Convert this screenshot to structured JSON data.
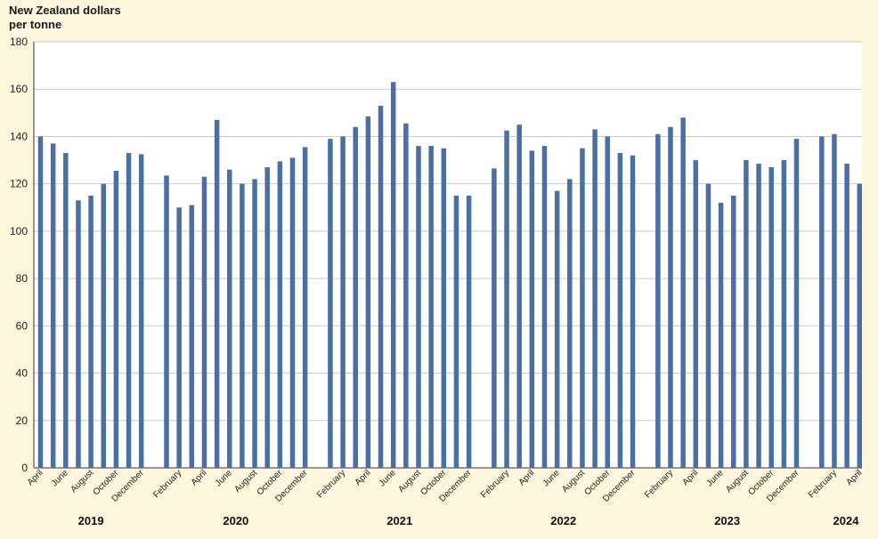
{
  "chart_data": {
    "type": "bar",
    "title": "",
    "unit_label_line1": "New Zealand dollars",
    "unit_label_line2": "per tonne",
    "xlabel": "",
    "ylabel": "New Zealand dollars per tonne",
    "ylim": [
      0,
      180
    ],
    "yticks": [
      0,
      20,
      40,
      60,
      80,
      100,
      120,
      140,
      160,
      180
    ],
    "grid": true,
    "bar_color": "#4a6fa5",
    "plot_background": "#ffffff",
    "page_background": "#fdf6dc",
    "years": [
      "2019",
      "2020",
      "2021",
      "2022",
      "2023",
      "2024"
    ],
    "groups": [
      {
        "year": "2019",
        "categories": [
          "April",
          "May",
          "June",
          "July",
          "August",
          "September",
          "October",
          "November",
          "December"
        ],
        "labels": [
          "April",
          "",
          "June",
          "",
          "August",
          "",
          "October",
          "",
          "December"
        ],
        "values": [
          140,
          137,
          133,
          113,
          115,
          120,
          125.5,
          133,
          132.5
        ]
      },
      {
        "year": "2020",
        "categories": [
          "January",
          "February",
          "March",
          "April",
          "May",
          "June",
          "July",
          "August",
          "September",
          "October",
          "November",
          "December"
        ],
        "labels": [
          "",
          "February",
          "",
          "April",
          "",
          "June",
          "",
          "August",
          "",
          "October",
          "",
          "December"
        ],
        "values": [
          123.5,
          110,
          111,
          123,
          147,
          126,
          120,
          122,
          127,
          129.5,
          131,
          135.5
        ]
      },
      {
        "year": "2021",
        "categories": [
          "January",
          "February",
          "March",
          "April",
          "May",
          "June",
          "July",
          "August",
          "September",
          "October",
          "November",
          "December"
        ],
        "labels": [
          "",
          "February",
          "",
          "April",
          "",
          "June",
          "",
          "August",
          "",
          "October",
          "",
          "December"
        ],
        "values": [
          139,
          140,
          144,
          148.5,
          153,
          163,
          145.5,
          136,
          136,
          135,
          115,
          115
        ]
      },
      {
        "year": "2022",
        "categories": [
          "January",
          "February",
          "March",
          "April",
          "May",
          "June",
          "July",
          "August",
          "September",
          "October",
          "November",
          "December"
        ],
        "labels": [
          "",
          "February",
          "",
          "April",
          "",
          "June",
          "",
          "August",
          "",
          "October",
          "",
          "December"
        ],
        "values": [
          126.5,
          142.5,
          145,
          134,
          136,
          117,
          122,
          135,
          143,
          140,
          133,
          132
        ]
      },
      {
        "year": "2023",
        "categories": [
          "January",
          "February",
          "March",
          "April",
          "May",
          "June",
          "July",
          "August",
          "September",
          "October",
          "November",
          "December"
        ],
        "labels": [
          "",
          "February",
          "",
          "April",
          "",
          "June",
          "",
          "August",
          "",
          "October",
          "",
          "December"
        ],
        "values": [
          141,
          144,
          148,
          130,
          120,
          112,
          115,
          130,
          128.5,
          127,
          130,
          139
        ]
      },
      {
        "year": "2024",
        "categories": [
          "January",
          "February",
          "March",
          "April"
        ],
        "labels": [
          "",
          "February",
          "",
          "April"
        ],
        "values": [
          140,
          141,
          128.5,
          120
        ]
      }
    ]
  }
}
